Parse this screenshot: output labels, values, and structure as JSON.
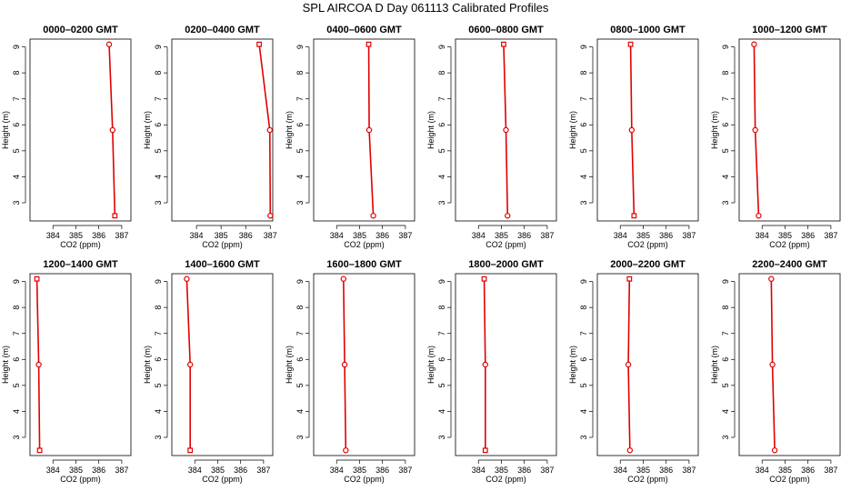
{
  "figure": {
    "title": "SPL AIRCOA D  Day 061113  Calibrated Profiles"
  },
  "colors": {
    "series": "#e00000",
    "axes": "#000000",
    "background": "#ffffff"
  },
  "chart_data": [
    {
      "type": "line",
      "title": "0000–0200 GMT",
      "xlabel": "CO2 (ppm)",
      "ylabel": "Height (m)",
      "xlim": [
        383,
        387.4
      ],
      "ylim": [
        2.3,
        9.3
      ],
      "x_ticks": [
        384,
        385,
        386,
        387
      ],
      "y_ticks": [
        3,
        4,
        5,
        6,
        7,
        8,
        9
      ],
      "series": [
        {
          "x": [
            386.45,
            386.6,
            386.7
          ],
          "y": [
            9.1,
            5.8,
            2.5
          ],
          "markers": [
            "circle",
            "circle",
            "square"
          ]
        }
      ]
    },
    {
      "type": "line",
      "title": "0200–0400 GMT",
      "xlabel": "CO2 (ppm)",
      "ylabel": "Height (m)",
      "xlim": [
        383,
        387.1
      ],
      "ylim": [
        2.3,
        9.3
      ],
      "x_ticks": [
        384,
        385,
        386,
        387
      ],
      "y_ticks": [
        3,
        4,
        5,
        6,
        7,
        8,
        9
      ],
      "series": [
        {
          "x": [
            386.55,
            386.98,
            387.0
          ],
          "y": [
            9.1,
            5.8,
            2.5
          ],
          "markers": [
            "square",
            "circle",
            "circle"
          ]
        }
      ]
    },
    {
      "type": "line",
      "title": "0400–0600 GMT",
      "xlabel": "CO2 (ppm)",
      "ylabel": "Height (m)",
      "xlim": [
        383,
        387.4
      ],
      "ylim": [
        2.3,
        9.3
      ],
      "x_ticks": [
        384,
        385,
        386,
        387
      ],
      "y_ticks": [
        3,
        4,
        5,
        6,
        7,
        8,
        9
      ],
      "series": [
        {
          "x": [
            385.4,
            385.42,
            385.6
          ],
          "y": [
            9.1,
            5.8,
            2.5
          ],
          "markers": [
            "square",
            "circle",
            "circle"
          ]
        }
      ]
    },
    {
      "type": "line",
      "title": "0600–0800 GMT",
      "xlabel": "CO2 (ppm)",
      "ylabel": "Height (m)",
      "xlim": [
        383,
        387.4
      ],
      "ylim": [
        2.3,
        9.3
      ],
      "x_ticks": [
        384,
        385,
        386,
        387
      ],
      "y_ticks": [
        3,
        4,
        5,
        6,
        7,
        8,
        9
      ],
      "series": [
        {
          "x": [
            385.1,
            385.2,
            385.27
          ],
          "y": [
            9.1,
            5.8,
            2.5
          ],
          "markers": [
            "square",
            "circle",
            "circle"
          ]
        }
      ]
    },
    {
      "type": "line",
      "title": "0800–1000 GMT",
      "xlabel": "CO2 (ppm)",
      "ylabel": "Height (m)",
      "xlim": [
        383,
        387.4
      ],
      "ylim": [
        2.3,
        9.3
      ],
      "x_ticks": [
        384,
        385,
        386,
        387
      ],
      "y_ticks": [
        3,
        4,
        5,
        6,
        7,
        8,
        9
      ],
      "series": [
        {
          "x": [
            384.45,
            384.5,
            384.6
          ],
          "y": [
            9.1,
            5.8,
            2.5
          ],
          "markers": [
            "square",
            "circle",
            "square"
          ]
        }
      ]
    },
    {
      "type": "line",
      "title": "1000–1200 GMT",
      "xlabel": "CO2 (ppm)",
      "ylabel": "Height (m)",
      "xlim": [
        383,
        387.4
      ],
      "ylim": [
        2.3,
        9.3
      ],
      "x_ticks": [
        384,
        385,
        386,
        387
      ],
      "y_ticks": [
        3,
        4,
        5,
        6,
        7,
        8,
        9
      ],
      "series": [
        {
          "x": [
            383.65,
            383.7,
            383.85
          ],
          "y": [
            9.1,
            5.8,
            2.5
          ],
          "markers": [
            "circle",
            "circle",
            "circle"
          ]
        }
      ]
    },
    {
      "type": "line",
      "title": "1200–1400 GMT",
      "xlabel": "CO2 (ppm)",
      "ylabel": "Height (m)",
      "xlim": [
        383,
        387.4
      ],
      "ylim": [
        2.3,
        9.3
      ],
      "x_ticks": [
        384,
        385,
        386,
        387
      ],
      "y_ticks": [
        3,
        4,
        5,
        6,
        7,
        8,
        9
      ],
      "series": [
        {
          "x": [
            383.3,
            383.38,
            383.42
          ],
          "y": [
            9.1,
            5.8,
            2.5
          ],
          "markers": [
            "square",
            "circle",
            "square"
          ]
        }
      ]
    },
    {
      "type": "line",
      "title": "1400–1600 GMT",
      "xlabel": "CO2 (ppm)",
      "ylabel": "Height (m)",
      "xlim": [
        383,
        387.4
      ],
      "ylim": [
        2.3,
        9.3
      ],
      "x_ticks": [
        384,
        385,
        386,
        387
      ],
      "y_ticks": [
        3,
        4,
        5,
        6,
        7,
        8,
        9
      ],
      "series": [
        {
          "x": [
            383.65,
            383.8,
            383.8
          ],
          "y": [
            9.1,
            5.8,
            2.5
          ],
          "markers": [
            "circle",
            "circle",
            "square"
          ]
        }
      ]
    },
    {
      "type": "line",
      "title": "1600–1800 GMT",
      "xlabel": "CO2 (ppm)",
      "ylabel": "Height (m)",
      "xlim": [
        383,
        387.4
      ],
      "ylim": [
        2.3,
        9.3
      ],
      "x_ticks": [
        384,
        385,
        386,
        387
      ],
      "y_ticks": [
        3,
        4,
        5,
        6,
        7,
        8,
        9
      ],
      "series": [
        {
          "x": [
            384.3,
            384.35,
            384.4
          ],
          "y": [
            9.1,
            5.8,
            2.5
          ],
          "markers": [
            "circle",
            "circle",
            "circle"
          ]
        }
      ]
    },
    {
      "type": "line",
      "title": "1800–2000 GMT",
      "xlabel": "CO2 (ppm)",
      "ylabel": "Height (m)",
      "xlim": [
        383,
        387.4
      ],
      "ylim": [
        2.3,
        9.3
      ],
      "x_ticks": [
        384,
        385,
        386,
        387
      ],
      "y_ticks": [
        3,
        4,
        5,
        6,
        7,
        8,
        9
      ],
      "series": [
        {
          "x": [
            384.25,
            384.3,
            384.3
          ],
          "y": [
            9.1,
            5.8,
            2.5
          ],
          "markers": [
            "square",
            "circle",
            "square"
          ]
        }
      ]
    },
    {
      "type": "line",
      "title": "2000–2200 GMT",
      "xlabel": "CO2 (ppm)",
      "ylabel": "Height (m)",
      "xlim": [
        383,
        387.4
      ],
      "ylim": [
        2.3,
        9.3
      ],
      "x_ticks": [
        384,
        385,
        386,
        387
      ],
      "y_ticks": [
        3,
        4,
        5,
        6,
        7,
        8,
        9
      ],
      "series": [
        {
          "x": [
            384.4,
            384.35,
            384.42
          ],
          "y": [
            9.1,
            5.8,
            2.5
          ],
          "markers": [
            "square",
            "circle",
            "circle"
          ]
        }
      ]
    },
    {
      "type": "line",
      "title": "2200–2400 GMT",
      "xlabel": "CO2 (ppm)",
      "ylabel": "Height (m)",
      "xlim": [
        383,
        387.4
      ],
      "ylim": [
        2.3,
        9.3
      ],
      "x_ticks": [
        384,
        385,
        386,
        387
      ],
      "y_ticks": [
        3,
        4,
        5,
        6,
        7,
        8,
        9
      ],
      "series": [
        {
          "x": [
            384.4,
            384.45,
            384.55
          ],
          "y": [
            9.1,
            5.8,
            2.5
          ],
          "markers": [
            "circle",
            "circle",
            "circle"
          ]
        }
      ]
    }
  ]
}
